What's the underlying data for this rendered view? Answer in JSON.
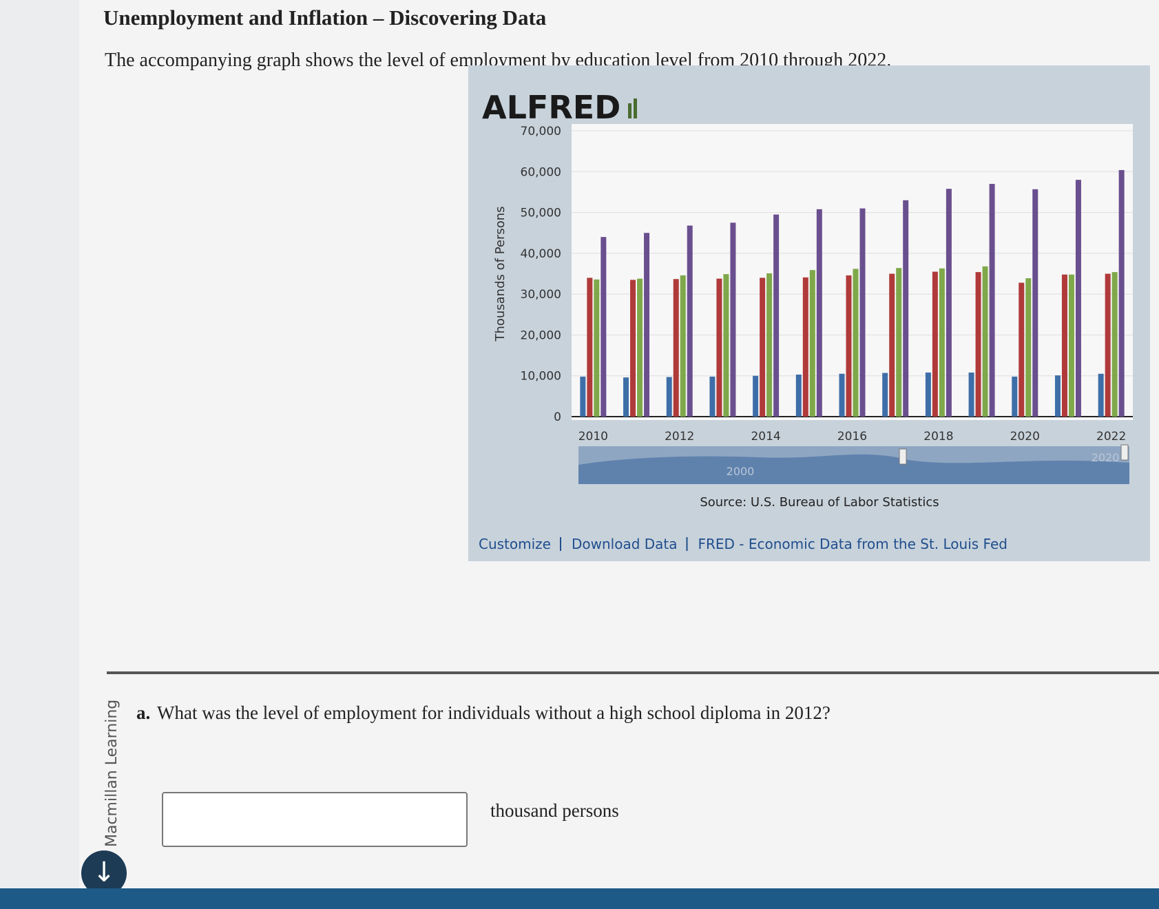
{
  "header": {
    "title": "Unemployment and Inflation – Discovering Data",
    "description": "The accompanying graph shows the level of employment by education level from 2010 through 2022."
  },
  "chart_data": {
    "type": "bar",
    "logo": "ALFRED",
    "y_label": "Thousands of Persons",
    "categories": [
      "2010",
      null,
      "2012",
      null,
      "2014",
      null,
      "2016",
      null,
      "2018",
      null,
      "2020",
      null,
      "2022"
    ],
    "series": [
      {
        "color": "#3e6ea8",
        "values": [
          9800,
          9600,
          9700,
          9800,
          10000,
          10300,
          10500,
          10700,
          10800,
          10800,
          9800,
          10100,
          10500
        ]
      },
      {
        "color": "#b03a3a",
        "values": [
          34000,
          33500,
          33700,
          33800,
          34000,
          34100,
          34600,
          35000,
          35500,
          35400,
          32800,
          34800,
          35000
        ]
      },
      {
        "color": "#7fa84a",
        "values": [
          33600,
          33800,
          34600,
          34900,
          35100,
          35900,
          36200,
          36400,
          36300,
          36800,
          33900,
          34800,
          35400
        ]
      },
      {
        "color": "#6a4f8f",
        "values": [
          44000,
          45000,
          46800,
          47500,
          49500,
          50800,
          51000,
          53000,
          55800,
          57000,
          55700,
          58000,
          60400
        ]
      }
    ],
    "ylim": [
      0,
      70000
    ],
    "yticks": [
      0,
      {
        "value": 10000,
        "label": "10,000"
      },
      {
        "value": 20000,
        "label": "20,000"
      },
      {
        "value": 30000,
        "label": "30,000"
      },
      {
        "value": 40000,
        "label": "40,000"
      },
      {
        "value": 50000,
        "label": "50,000"
      },
      {
        "value": 60000,
        "label": "60,000"
      },
      {
        "value": 70000,
        "label": "70,000"
      }
    ],
    "grid": true,
    "navigator_labels": [
      "2000",
      "2020"
    ],
    "source": "Source: U.S. Bureau of Labor Statistics",
    "links": [
      "Customize",
      "Download Data",
      "FRED - Economic Data from the St. Louis Fed"
    ]
  },
  "question": {
    "label": "a.",
    "text": "What was the level of employment for individuals without a high school diploma in 2012?",
    "unit": "thousand persons"
  },
  "sidebar": "Macmillan Learning"
}
